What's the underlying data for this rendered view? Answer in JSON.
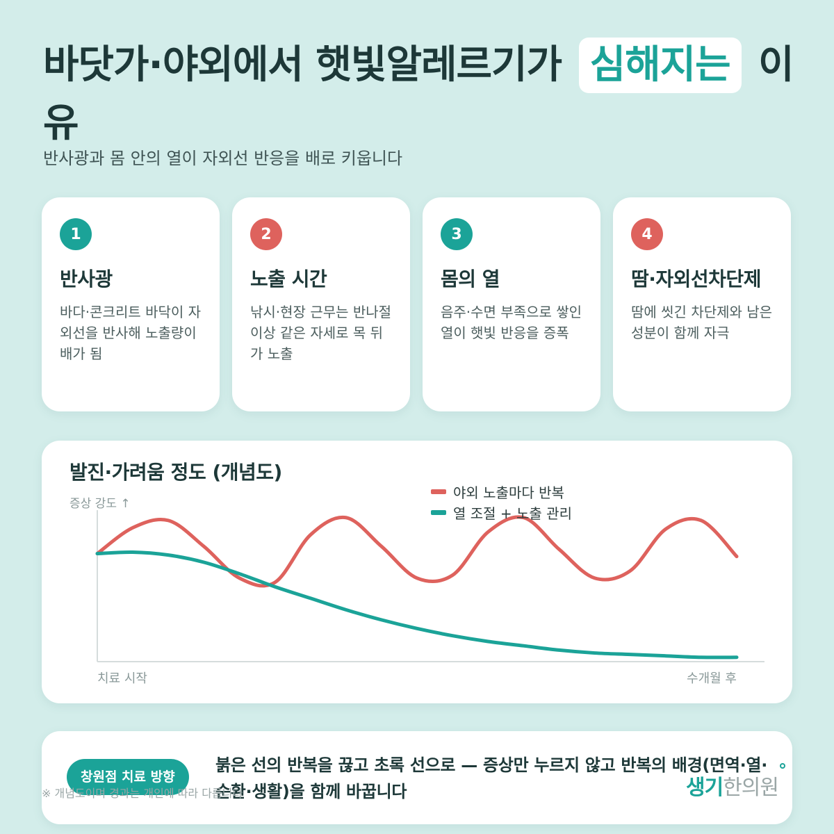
{
  "header": {
    "title_pre": "바닷가·야외에서 햇빛알레르기가",
    "title_highlight": "심해지는",
    "title_post": "이유",
    "subtitle": "반사광과 몸 안의 열이 자외선 반응을 배로 키웁니다"
  },
  "cards": [
    {
      "num": "1",
      "title": "반사광",
      "desc": "바다·콘크리트 바닥이 자외선을 반사해 노출량이 배가 됨"
    },
    {
      "num": "2",
      "title": "노출 시간",
      "desc": "낚시·현장 근무는 반나절 이상 같은 자세로 목 뒤가 노출"
    },
    {
      "num": "3",
      "title": "몸의 열",
      "desc": "음주·수면 부족으로 쌓인 열이 햇빛 반응을 증폭"
    },
    {
      "num": "4",
      "title": "땀·자외선차단제",
      "desc": "땀에 씻긴 차단제와 남은 성분이 함께 자극"
    }
  ],
  "colors": {
    "teal": "#1ba398",
    "red": "#de625d"
  },
  "chart_data": {
    "type": "line",
    "title": "발진·가려움 정도 (개념도)",
    "ylabel": "증상 강도 ↑",
    "x_start_label": "치료 시작",
    "x_end_label": "수개월 후",
    "x": [
      0,
      1,
      2,
      3,
      4,
      5,
      6,
      7,
      8,
      9,
      10,
      11,
      12,
      13,
      14,
      15,
      16,
      17,
      18
    ],
    "series": [
      {
        "name": "야외 노출마다 반복",
        "color": "#de625d",
        "values": [
          0.75,
          0.93,
          0.98,
          0.8,
          0.58,
          0.55,
          0.88,
          1.0,
          0.8,
          0.58,
          0.6,
          0.9,
          1.0,
          0.78,
          0.58,
          0.63,
          0.92,
          0.98,
          0.73
        ]
      },
      {
        "name": "열 조절 + 노출 관리",
        "color": "#1ba398",
        "values": [
          0.75,
          0.76,
          0.74,
          0.69,
          0.61,
          0.52,
          0.44,
          0.36,
          0.29,
          0.23,
          0.18,
          0.14,
          0.11,
          0.08,
          0.06,
          0.05,
          0.04,
          0.03,
          0.03
        ]
      }
    ],
    "ylim": [
      0,
      1.1
    ],
    "grid": false,
    "legend": "top"
  },
  "bottom": {
    "badge": "창원점 치료 방향",
    "text": "붉은 선의 반복을 끊고 초록 선으로 — 증상만 누르지 않고 반복의 배경(면역·열·순환·생활)을 함께 바꿉니다",
    "note": "※ 개념도이며 경과는 개인에 따라 다릅니다",
    "logo_a": "생기",
    "logo_b": "한의원"
  }
}
